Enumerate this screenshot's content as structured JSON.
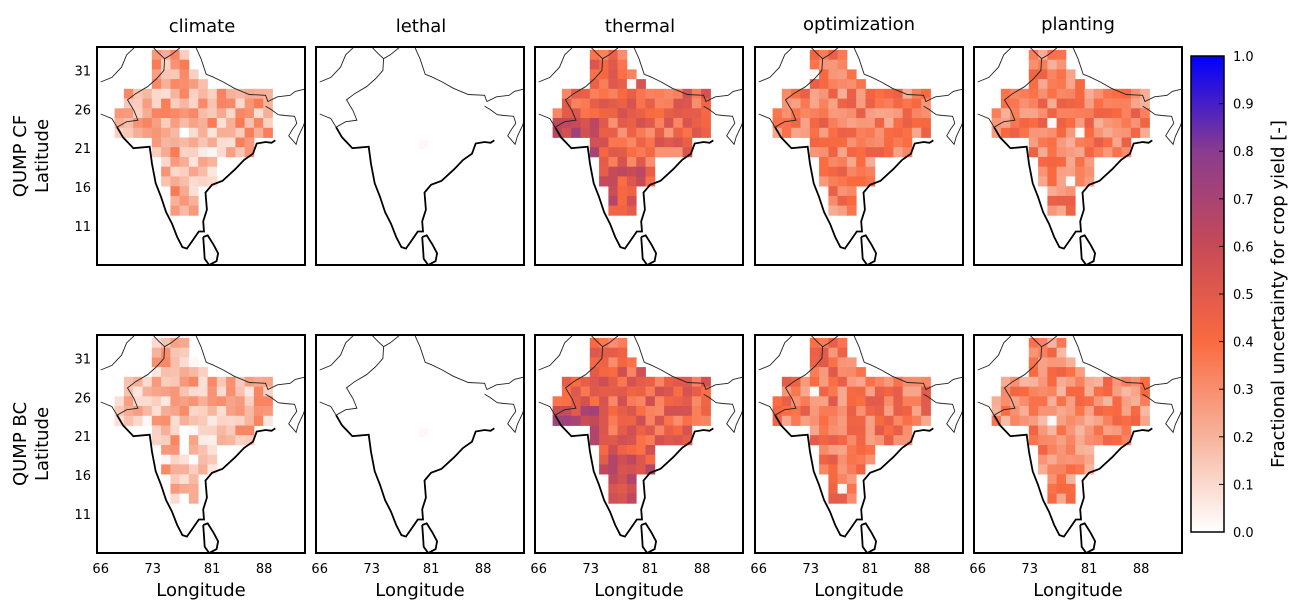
{
  "figure": {
    "columns": [
      "climate",
      "lethal",
      "thermal",
      "optimization",
      "planting"
    ],
    "rows": [
      "QUMP CF",
      "QUMP BC"
    ],
    "xlabel": "Longitude",
    "ylabel": "Latitude",
    "x_ticks": [
      "66",
      "73",
      "81",
      "88"
    ],
    "y_ticks": [
      "31",
      "26",
      "21",
      "16",
      "11"
    ]
  },
  "colorbar": {
    "label": "Fractional uncertainty for crop yield [-]",
    "ticks": [
      "0.0",
      "0.1",
      "0.2",
      "0.3",
      "0.4",
      "0.5",
      "0.6",
      "0.7",
      "0.8",
      "0.9",
      "1.0"
    ],
    "colors": [
      "#ffffff",
      "#f7b39c",
      "#fa6a40",
      "#c74a57",
      "#8a3c8f",
      "#0000ff"
    ],
    "range": [
      0,
      1
    ]
  },
  "map_extent": {
    "lon": [
      65.5,
      93.5
    ],
    "lat": [
      6,
      34
    ]
  },
  "typical_uncertainty": {
    "QUMP CF": {
      "climate": 0.22,
      "lethal": 0.0,
      "thermal": 0.42,
      "optimization": 0.35,
      "planting": 0.34
    },
    "QUMP BC": {
      "climate": 0.2,
      "lethal": 0.0,
      "thermal": 0.44,
      "optimization": 0.37,
      "planting": 0.31
    }
  }
}
